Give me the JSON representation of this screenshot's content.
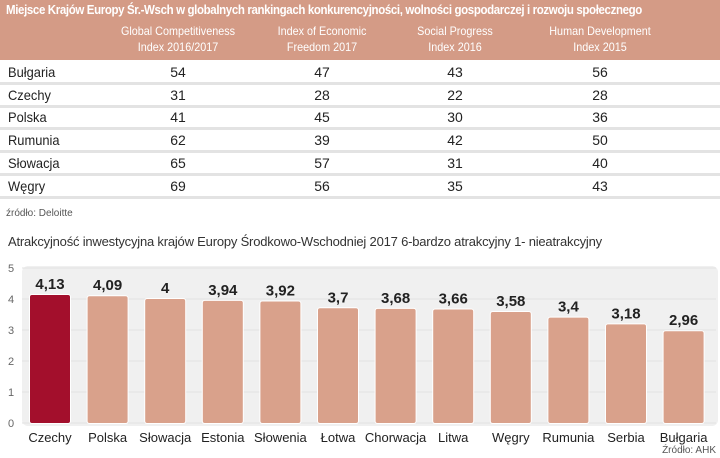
{
  "table": {
    "title": "Miejsce Krajów Europy Śr.-Wsch w globalnych rankingach konkurencyjności, wolności gospodarczej i rozwoju społecznego",
    "columns": [
      [
        "Global Competitiveness",
        "Index 2016/2017"
      ],
      [
        "Index of Economic",
        "Freedom 2017"
      ],
      [
        "Social Progress",
        "Index 2016"
      ],
      [
        "Human Development",
        "Index 2015"
      ]
    ],
    "rows": [
      {
        "country": "Bułgaria",
        "values": [
          "54",
          "47",
          "43",
          "56"
        ]
      },
      {
        "country": "Czechy",
        "values": [
          "31",
          "28",
          "22",
          "28"
        ]
      },
      {
        "country": "Polska",
        "values": [
          "41",
          "45",
          "30",
          "36"
        ]
      },
      {
        "country": "Rumunia",
        "values": [
          "62",
          "39",
          "42",
          "50"
        ]
      },
      {
        "country": "Słowacja",
        "values": [
          "65",
          "57",
          "31",
          "40"
        ]
      },
      {
        "country": "Węgry",
        "values": [
          "69",
          "56",
          "35",
          "43"
        ]
      }
    ],
    "source": "źródło: Deloitte",
    "header_color": "#d49b86"
  },
  "chart_data": {
    "type": "bar",
    "title": "Atrakcyjność inwestycyjna krajów Europy Środkowo-Wschodniej 2017 6-bardzo atrakcyjny 1- nieatrakcyjny",
    "categories": [
      "Czechy",
      "Polska",
      "Słowacja",
      "Estonia",
      "Słowenia",
      "Łotwa",
      "Chorwacja",
      "Litwa",
      "Węgry",
      "Rumunia",
      "Serbia",
      "Bułgaria"
    ],
    "values": [
      4.13,
      4.09,
      4,
      3.94,
      3.92,
      3.7,
      3.68,
      3.66,
      3.58,
      3.4,
      3.18,
      2.96
    ],
    "value_labels": [
      "4,13",
      "4,09",
      "4",
      "3,94",
      "3,92",
      "3,7",
      "3,68",
      "3,66",
      "3,58",
      "3,4",
      "3,18",
      "2,96"
    ],
    "ylim": [
      0,
      5
    ],
    "yticks": [
      "0",
      "1",
      "2",
      "3",
      "4",
      "5"
    ],
    "grid": true,
    "colors": {
      "bar": "#d9a18b",
      "highlight": "#a30f2c",
      "highlight_category": "Czechy"
    },
    "source": "Źródło: AHK"
  }
}
